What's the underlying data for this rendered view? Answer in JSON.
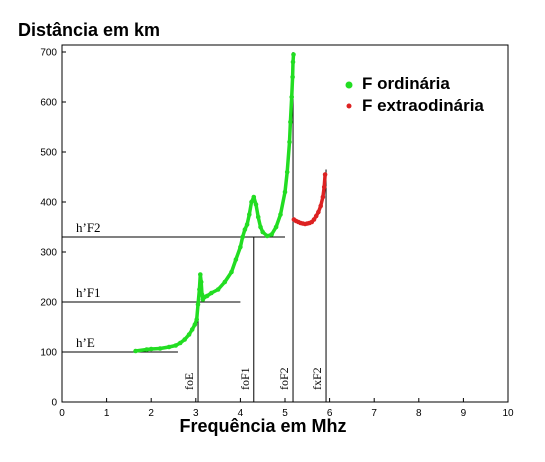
{
  "chart_data": {
    "type": "scatter",
    "title": "Distância em km",
    "xlabel": "Frequência em Mhz",
    "ylabel": "",
    "xlim": [
      0,
      10
    ],
    "ylim": [
      0,
      700
    ],
    "xticks": [
      "0",
      "1",
      "2",
      "3",
      "4",
      "5",
      "6",
      "7",
      "8",
      "9",
      "10"
    ],
    "yticks": [
      "0",
      "100",
      "200",
      "300",
      "400",
      "500",
      "600",
      "700"
    ],
    "grid": false,
    "legend_position": "top-right",
    "series": [
      {
        "name": "F ordinária",
        "color": "#22dd22",
        "x": [
          1.65,
          1.9,
          2.0,
          2.2,
          2.4,
          2.55,
          2.65,
          2.75,
          2.85,
          2.92,
          2.98,
          3.02,
          3.05,
          3.08,
          3.1,
          3.12,
          3.14,
          3.16,
          3.2,
          3.25,
          3.35,
          3.5,
          3.65,
          3.8,
          3.9,
          4.0,
          4.05,
          4.1,
          4.15,
          4.2,
          4.25,
          4.3,
          4.35,
          4.4,
          4.45,
          4.5,
          4.6,
          4.7,
          4.8,
          4.9,
          5.0,
          5.05,
          5.1,
          5.12,
          5.15,
          5.17,
          5.18,
          5.19
        ],
        "y": [
          102,
          105,
          106,
          107,
          110,
          113,
          118,
          125,
          135,
          145,
          155,
          165,
          195,
          225,
          255,
          240,
          215,
          205,
          210,
          212,
          218,
          225,
          240,
          260,
          285,
          310,
          330,
          345,
          355,
          375,
          400,
          410,
          395,
          370,
          350,
          340,
          332,
          335,
          350,
          375,
          420,
          460,
          520,
          560,
          610,
          650,
          680,
          695
        ]
      },
      {
        "name": "F extraodinária",
        "color": "#dd2222",
        "x": [
          5.2,
          5.25,
          5.3,
          5.35,
          5.4,
          5.45,
          5.5,
          5.55,
          5.6,
          5.65,
          5.7,
          5.75,
          5.8,
          5.85,
          5.88,
          5.9
        ],
        "y": [
          365,
          362,
          360,
          358,
          357,
          356,
          357,
          358,
          360,
          365,
          372,
          380,
          392,
          410,
          430,
          455
        ]
      }
    ],
    "annotations": {
      "heights": [
        {
          "label": "h’E",
          "y": 100,
          "x_end": 2.6
        },
        {
          "label": "h’F1",
          "y": 200,
          "x_end": 4.0
        },
        {
          "label": "h’F2",
          "y": 330,
          "x_end": 5.0
        }
      ],
      "frequencies": [
        {
          "label": "foE",
          "x": 3.05,
          "y_top": 210
        },
        {
          "label": "foF1",
          "x": 4.3,
          "y_top": 330
        },
        {
          "label": "foF2",
          "x": 5.18,
          "y_top": 700
        },
        {
          "label": "fxF2",
          "x": 5.92,
          "y_top": 465
        }
      ]
    }
  }
}
